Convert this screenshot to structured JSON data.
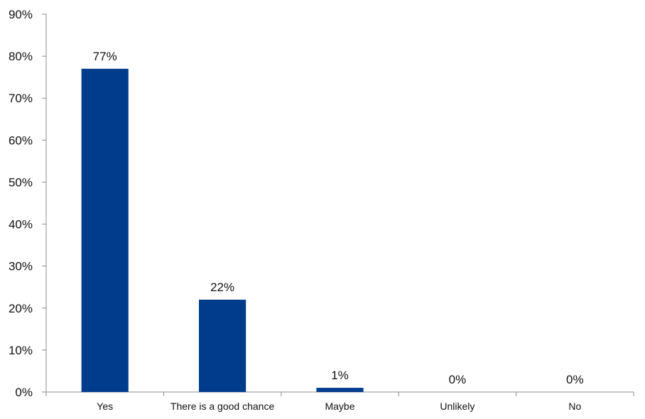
{
  "chart_data": {
    "type": "bar",
    "categories": [
      "Yes",
      "There is a good chance",
      "Maybe",
      "Unlikely",
      "No"
    ],
    "values": [
      77,
      22,
      1,
      0,
      0
    ],
    "data_labels": [
      "77%",
      "22%",
      "1%",
      "0%",
      "0%"
    ],
    "y_ticks": [
      0,
      10,
      20,
      30,
      40,
      50,
      60,
      70,
      80,
      90
    ],
    "y_tick_labels": [
      "0%",
      "10%",
      "20%",
      "30%",
      "40%",
      "50%",
      "60%",
      "70%",
      "80%",
      "90%"
    ],
    "ylim": [
      0,
      90
    ],
    "grid": false,
    "bar_color": "#003B8C"
  }
}
